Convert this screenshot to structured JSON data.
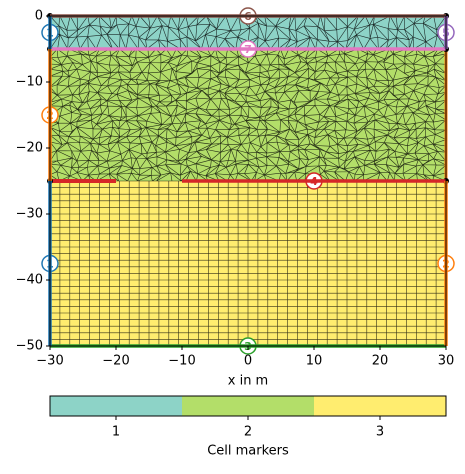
{
  "chart_data": {
    "type": "mesh",
    "xlabel": "x in m",
    "xlim": [
      -30,
      30
    ],
    "ylim": [
      -50,
      0
    ],
    "xticks": [
      {
        "value": -30,
        "label": "−30"
      },
      {
        "value": -20,
        "label": "−20"
      },
      {
        "value": -10,
        "label": "−10"
      },
      0,
      10,
      20,
      30
    ],
    "yticks": [
      0,
      {
        "value": -10,
        "label": "−10"
      },
      {
        "value": -20,
        "label": "−20"
      },
      {
        "value": -30,
        "label": "−30"
      },
      {
        "value": -40,
        "label": "−40"
      },
      {
        "value": -50,
        "label": "−50"
      }
    ],
    "regions": [
      {
        "marker": 1,
        "color": "#8dd3c7",
        "y": [
          -5,
          0
        ]
      },
      {
        "marker": 2,
        "color": "#b3de69",
        "y": [
          -25,
          -5
        ]
      },
      {
        "marker": 3,
        "color": "#ffed6f",
        "y": [
          -50,
          -25
        ]
      }
    ],
    "boundaries": [
      {
        "marker": 6,
        "color": "#8c564b",
        "x": [
          -30,
          30
        ],
        "y": [
          0,
          0
        ]
      },
      {
        "marker": 7,
        "color": "#e377c2",
        "x": [
          -30,
          30
        ],
        "y": [
          -5,
          -5
        ]
      },
      {
        "marker": 4,
        "color": "#d62728",
        "x": [
          -10,
          30
        ],
        "y": [
          -25,
          -25
        ]
      },
      {
        "marker": 3,
        "color": "#2ca02c",
        "x": [
          -30,
          30
        ],
        "y": [
          -50,
          -50
        ]
      },
      {
        "marker": 1,
        "color": "#1f77b4",
        "x": [
          -30,
          -30
        ],
        "y": [
          0,
          -5
        ]
      },
      {
        "marker": 2,
        "color": "#ff7f0e",
        "x": [
          -30,
          -30
        ],
        "y": [
          -5,
          -25
        ]
      },
      {
        "marker": 1,
        "color": "#1f77b4",
        "x": [
          -30,
          -30
        ],
        "y": [
          -25,
          -50
        ]
      },
      {
        "marker": 5,
        "color": "#9467bd",
        "x": [
          30,
          30
        ],
        "y": [
          0,
          -5
        ]
      },
      {
        "marker": 2,
        "color": "#ff7f0e",
        "x": [
          30,
          30
        ],
        "y": [
          -25,
          -50
        ]
      }
    ],
    "colorbar_label": "Cell markers"
  }
}
